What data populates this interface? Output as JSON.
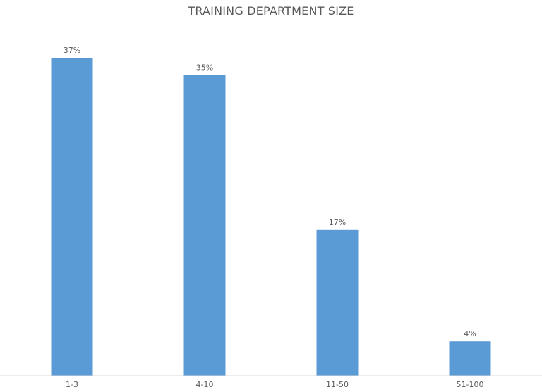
{
  "chart_data": {
    "type": "bar",
    "title": "TRAINING DEPARTMENT SIZE",
    "xlabel": "",
    "ylabel": "",
    "categories": [
      "1-3",
      "4-10",
      "11-50",
      "51-100"
    ],
    "values": [
      37,
      35,
      17,
      4
    ],
    "data_labels": [
      "37%",
      "35%",
      "17%",
      "4%"
    ],
    "value_unit": "%",
    "ylim": [
      0,
      37
    ],
    "grid": false,
    "legend": "none",
    "bar_color": "#5B9BD5",
    "axis_color": "#D9D9D9",
    "text_color": "#595959"
  }
}
